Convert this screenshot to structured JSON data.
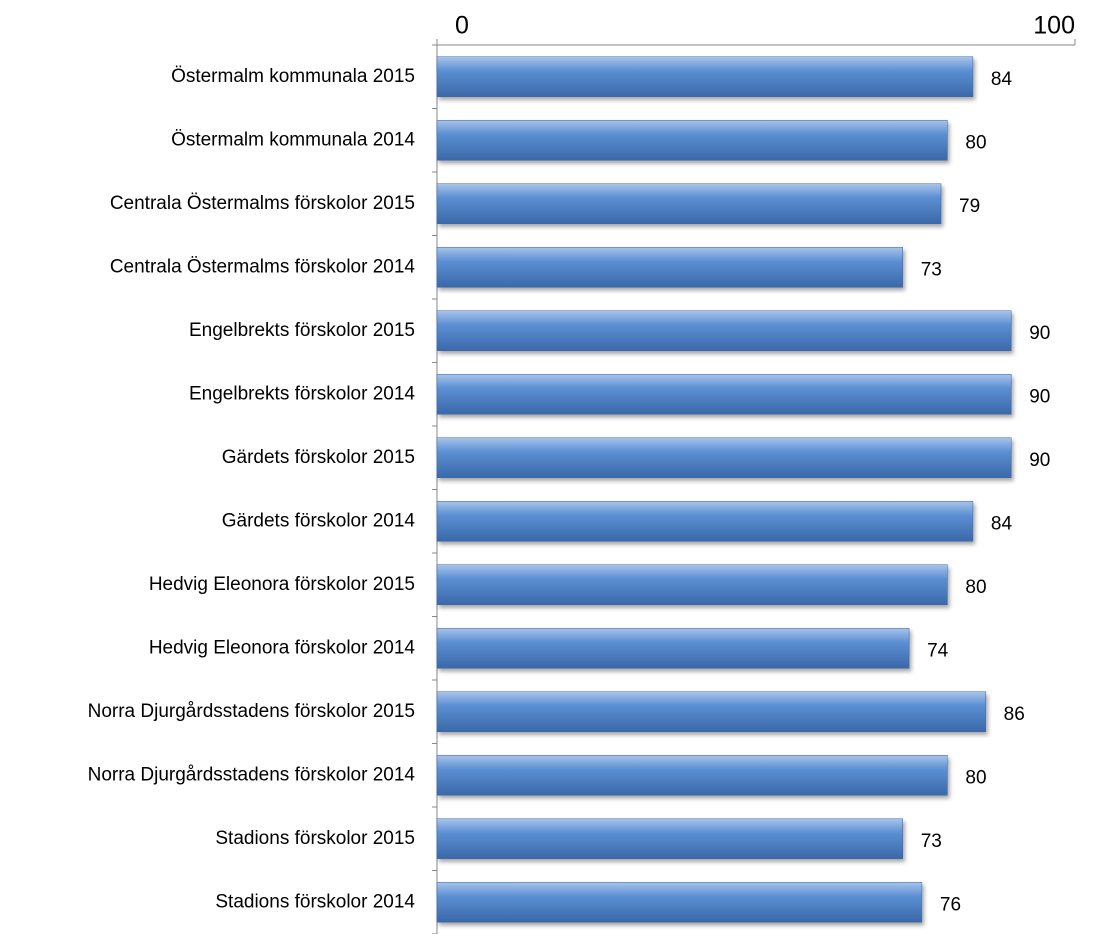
{
  "chart_data": {
    "type": "bar",
    "orientation": "horizontal",
    "categories": [
      "Östermalm kommunala 2015",
      "Östermalm kommunala 2014",
      "Centrala Östermalms förskolor 2015",
      "Centrala Östermalms förskolor 2014",
      "Engelbrekts förskolor 2015",
      "Engelbrekts förskolor 2014",
      "Gärdets förskolor 2015",
      "Gärdets förskolor 2014",
      "Hedvig Eleonora förskolor 2015",
      "Hedvig Eleonora förskolor 2014",
      "Norra Djurgårdsstadens förskolor 2015",
      "Norra Djurgårdsstadens förskolor 2014",
      "Stadions förskolor 2015",
      "Stadions förskolor 2014"
    ],
    "values": [
      84,
      80,
      79,
      73,
      90,
      90,
      90,
      84,
      80,
      74,
      86,
      80,
      73,
      76
    ],
    "color": "#4f81bd",
    "xlim": [
      0,
      100
    ],
    "xticks": [
      0,
      100
    ],
    "axis_position": "top"
  }
}
